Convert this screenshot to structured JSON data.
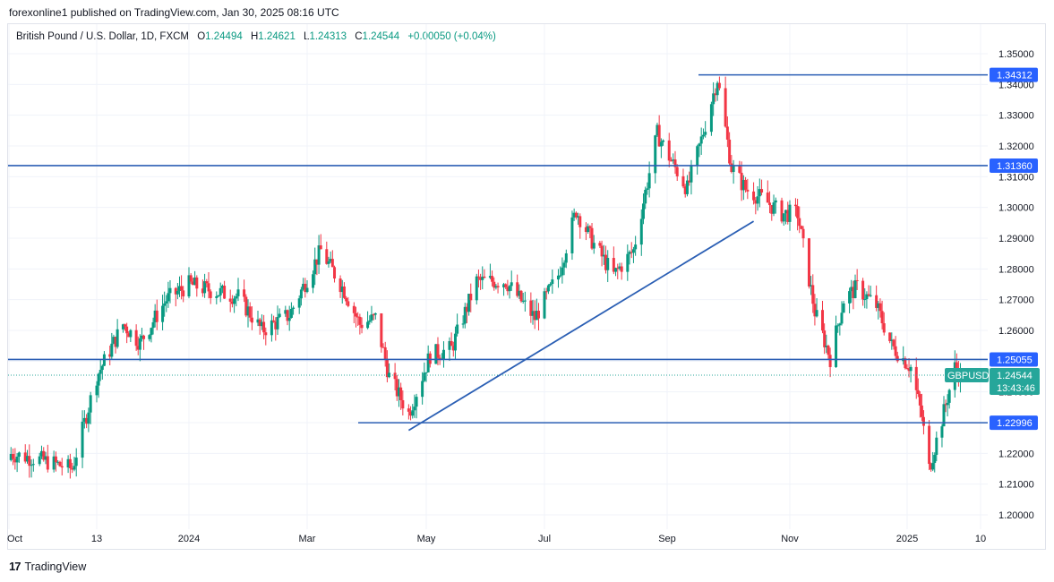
{
  "header": {
    "publisher": "forexonline1 published on TradingView.com, Jan 30, 2025 08:16 UTC"
  },
  "legend": {
    "symbol": "British Pound / U.S. Dollar, 1D, FXCM",
    "o_label": "O",
    "o": "1.24494",
    "h_label": "H",
    "h": "1.24621",
    "l_label": "L",
    "l": "1.24313",
    "c_label": "C",
    "c": "1.24544",
    "change": "+0.00050 (+0.04%)"
  },
  "footer": {
    "logo": "17",
    "brand": "TradingView"
  },
  "colors": {
    "up": "#089981",
    "down": "#f23645",
    "line": "#2962ff",
    "line_dark": "#2b5fb4",
    "badge": "#2962ff",
    "current": "#26a69a"
  },
  "chart_data": {
    "type": "candlestick",
    "title": "British Pound / U.S. Dollar, 1D, FXCM",
    "y_ticks": [
      "1.35000",
      "1.34000",
      "1.33000",
      "1.32000",
      "1.31000",
      "1.30000",
      "1.29000",
      "1.28000",
      "1.27000",
      "1.26000",
      "1.25000",
      "1.24000",
      "1.23000",
      "1.22000",
      "1.21000",
      "1.20000"
    ],
    "ylim": [
      1.2,
      1.35
    ],
    "x_ticks": [
      "Oct",
      "13",
      "2024",
      "Mar",
      "May",
      "Jul",
      "Sep",
      "Nov",
      "2025",
      "10"
    ],
    "horizontal_levels": [
      {
        "label": "1.34312",
        "value": 1.34312
      },
      {
        "label": "1.31360",
        "value": 1.3136
      },
      {
        "label": "1.25055",
        "value": 1.25055
      },
      {
        "label": "1.22996",
        "value": 1.22996
      }
    ],
    "trendline": {
      "from": {
        "date": "2024-04-22",
        "value": 1.2275
      },
      "to": {
        "date": "2024-10-14",
        "value": 1.2955
      }
    },
    "current": {
      "symbol": "GBPUSD",
      "price": "1.24544",
      "countdown": "13:43:46",
      "value": 1.24544
    },
    "close_path": [
      [
        "2023-10-01",
        1.22
      ],
      [
        "2023-10-16",
        1.218
      ],
      [
        "2023-11-01",
        1.215
      ],
      [
        "2023-11-13",
        1.245
      ],
      [
        "2023-11-27",
        1.262
      ],
      [
        "2023-12-06",
        1.256
      ],
      [
        "2023-12-20",
        1.27
      ],
      [
        "2024-01-01",
        1.275
      ],
      [
        "2024-01-12",
        1.273
      ],
      [
        "2024-01-26",
        1.271
      ],
      [
        "2024-02-07",
        1.26
      ],
      [
        "2024-02-21",
        1.265
      ],
      [
        "2024-03-08",
        1.286
      ],
      [
        "2024-03-20",
        1.273
      ],
      [
        "2024-03-28",
        1.262
      ],
      [
        "2024-04-05",
        1.264
      ],
      [
        "2024-04-12",
        1.245
      ],
      [
        "2024-04-22",
        1.233
      ],
      [
        "2024-05-03",
        1.252
      ],
      [
        "2024-05-14",
        1.254
      ],
      [
        "2024-05-27",
        1.276
      ],
      [
        "2024-06-11",
        1.276
      ],
      [
        "2024-06-26",
        1.264
      ],
      [
        "2024-07-08",
        1.278
      ],
      [
        "2024-07-17",
        1.299
      ],
      [
        "2024-07-26",
        1.288
      ],
      [
        "2024-08-05",
        1.278
      ],
      [
        "2024-08-15",
        1.286
      ],
      [
        "2024-08-27",
        1.324
      ],
      [
        "2024-09-04",
        1.314
      ],
      [
        "2024-09-11",
        1.306
      ],
      [
        "2024-09-18",
        1.322
      ],
      [
        "2024-09-26",
        1.342
      ],
      [
        "2024-10-03",
        1.313
      ],
      [
        "2024-10-10",
        1.306
      ],
      [
        "2024-10-18",
        1.303
      ],
      [
        "2024-10-28",
        1.298
      ],
      [
        "2024-11-05",
        1.298
      ],
      [
        "2024-11-14",
        1.266
      ],
      [
        "2024-11-22",
        1.251
      ],
      [
        "2024-11-29",
        1.27
      ],
      [
        "2024-12-06",
        1.274
      ],
      [
        "2024-12-16",
        1.268
      ],
      [
        "2024-12-24",
        1.255
      ],
      [
        "2025-01-03",
        1.248
      ],
      [
        "2025-01-09",
        1.232
      ],
      [
        "2025-01-13",
        1.215
      ],
      [
        "2025-01-20",
        1.231
      ],
      [
        "2025-01-27",
        1.248
      ],
      [
        "2025-01-30",
        1.2454
      ]
    ]
  }
}
